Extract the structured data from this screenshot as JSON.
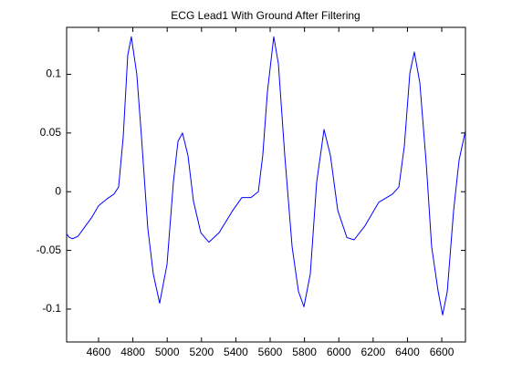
{
  "chart_data": {
    "type": "line",
    "title": "ECG Lead1 With Ground After Filtering",
    "x": [
      4414,
      4430,
      4450,
      4480,
      4520,
      4560,
      4600,
      4650,
      4690,
      4717,
      4744,
      4770,
      4791,
      4823,
      4850,
      4887,
      4919,
      4956,
      4999,
      5036,
      5063,
      5089,
      5121,
      5153,
      5196,
      5243,
      5302,
      5382,
      5435,
      5488,
      5531,
      5557,
      5584,
      5621,
      5648,
      5685,
      5728,
      5765,
      5797,
      5834,
      5871,
      5914,
      5951,
      5994,
      6047,
      6089,
      6153,
      6233,
      6313,
      6350,
      6382,
      6414,
      6440,
      6472,
      6510,
      6541,
      6579,
      6605,
      6632,
      6669,
      6701,
      6738
    ],
    "series": [
      {
        "name": "ECG Lead1",
        "color": "#0000ff",
        "values": [
          -0.036,
          -0.039,
          -0.04,
          -0.038,
          -0.03,
          -0.022,
          -0.012,
          -0.006,
          -0.002,
          0.004,
          0.047,
          0.116,
          0.132,
          0.1,
          0.047,
          -0.031,
          -0.07,
          -0.095,
          -0.062,
          0.008,
          0.043,
          0.05,
          0.031,
          -0.008,
          -0.035,
          -0.043,
          -0.035,
          -0.016,
          -0.005,
          -0.005,
          0.0,
          0.031,
          0.085,
          0.132,
          0.109,
          0.031,
          -0.047,
          -0.085,
          -0.098,
          -0.07,
          0.008,
          0.053,
          0.031,
          -0.016,
          -0.039,
          -0.041,
          -0.029,
          -0.009,
          -0.002,
          0.004,
          0.039,
          0.101,
          0.119,
          0.093,
          0.023,
          -0.047,
          -0.085,
          -0.105,
          -0.085,
          -0.016,
          0.027,
          0.052
        ]
      }
    ],
    "xlim": [
      4414,
      6738
    ],
    "ylim": [
      -0.128,
      0.14
    ],
    "xticks": [
      4600,
      4800,
      5000,
      5200,
      5400,
      5600,
      5800,
      6000,
      6200,
      6400,
      6600
    ],
    "yticks": [
      -0.1,
      -0.05,
      0,
      0.05,
      0.1
    ]
  }
}
